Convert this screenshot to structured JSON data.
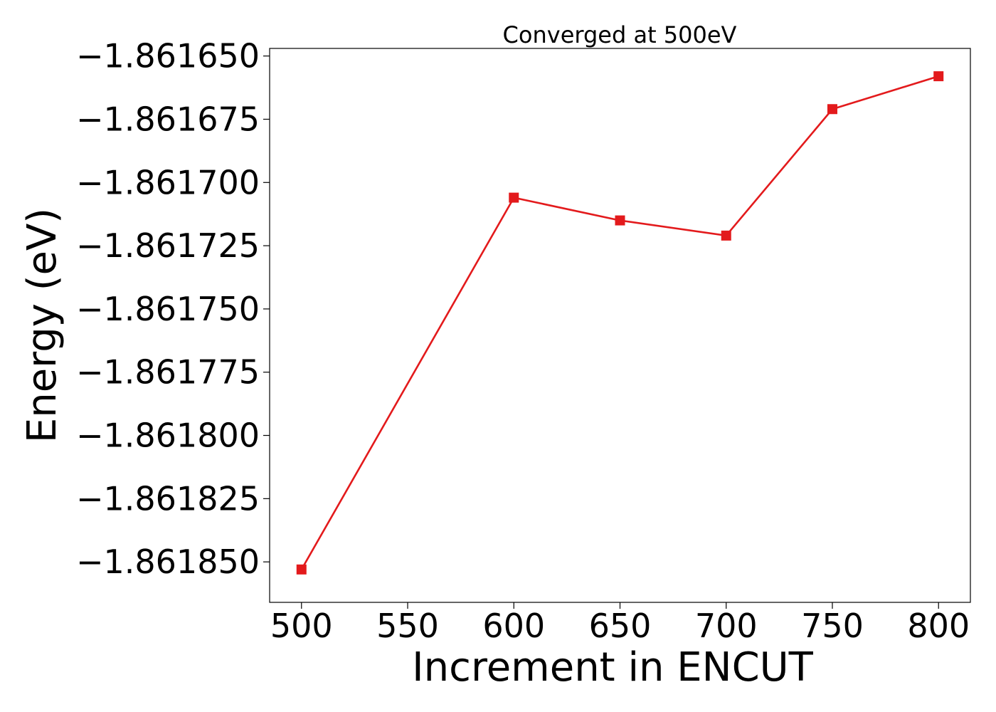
{
  "chart_data": {
    "type": "line",
    "title": "Converged at 500eV",
    "xlabel": "Increment in ENCUT",
    "ylabel": "Energy (eV)",
    "xlim": [
      485,
      815
    ],
    "ylim": [
      -1.861866,
      -1.861647
    ],
    "xticks": [
      500,
      550,
      600,
      650,
      700,
      750,
      800
    ],
    "xtick_labels": [
      "500",
      "550",
      "600",
      "650",
      "700",
      "750",
      "800"
    ],
    "yticks": [
      -1.86165,
      -1.861675,
      -1.8617,
      -1.861725,
      -1.86175,
      -1.861775,
      -1.8618,
      -1.861825,
      -1.86185
    ],
    "ytick_labels": [
      "−1.861650",
      "−1.861675",
      "−1.861700",
      "−1.861725",
      "−1.861750",
      "−1.861775",
      "−1.861800",
      "−1.861825",
      "−1.861850"
    ],
    "grid": false,
    "series": [
      {
        "color": "#e31a1c",
        "marker": "square",
        "x": [
          500,
          600,
          650,
          700,
          750,
          800
        ],
        "y": [
          -1.861853,
          -1.861706,
          -1.861715,
          -1.861721,
          -1.861671,
          -1.861658
        ]
      }
    ]
  }
}
